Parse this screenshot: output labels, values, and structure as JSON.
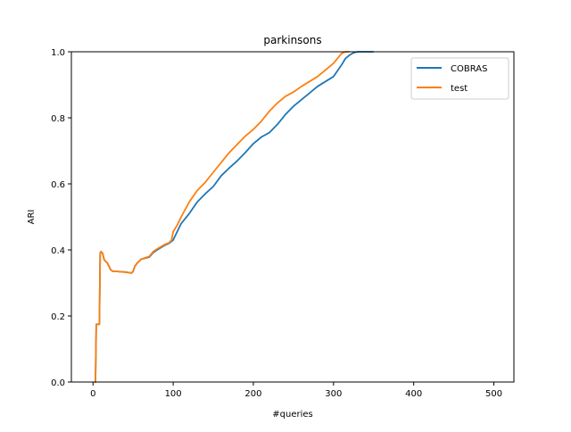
{
  "chart_data": {
    "type": "line",
    "title": "parkinsons",
    "xlabel": "#queries",
    "ylabel": "ARI",
    "xlim": [
      -27,
      525
    ],
    "ylim": [
      0.0,
      1.0
    ],
    "xticks": [
      0,
      100,
      200,
      300,
      400,
      500
    ],
    "yticks": [
      0.0,
      0.2,
      0.4,
      0.6,
      0.8,
      1.0
    ],
    "xtick_labels": [
      "0",
      "100",
      "200",
      "300",
      "400",
      "500"
    ],
    "ytick_labels": [
      "0.0",
      "0.2",
      "0.4",
      "0.6",
      "0.8",
      "1.0"
    ],
    "grid": false,
    "legend_position": "top-right",
    "series": [
      {
        "name": "COBRAS",
        "color": "#1f77b4",
        "x": [
          2,
          3,
          4,
          5,
          8,
          9,
          10,
          12,
          14,
          16,
          18,
          22,
          25,
          30,
          40,
          48,
          50,
          52,
          55,
          60,
          70,
          75,
          80,
          90,
          95,
          100,
          105,
          110,
          120,
          130,
          140,
          150,
          160,
          170,
          180,
          190,
          200,
          210,
          220,
          230,
          240,
          250,
          260,
          270,
          280,
          290,
          300,
          310,
          315,
          320,
          325,
          330,
          340,
          350
        ],
        "values": [
          0.0,
          0.0,
          0.175,
          0.175,
          0.175,
          0.39,
          0.395,
          0.39,
          0.37,
          0.365,
          0.36,
          0.34,
          0.335,
          0.335,
          0.333,
          0.33,
          0.335,
          0.35,
          0.36,
          0.372,
          0.378,
          0.392,
          0.4,
          0.415,
          0.42,
          0.43,
          0.455,
          0.48,
          0.51,
          0.545,
          0.57,
          0.592,
          0.625,
          0.648,
          0.67,
          0.695,
          0.722,
          0.742,
          0.755,
          0.78,
          0.81,
          0.835,
          0.855,
          0.875,
          0.895,
          0.91,
          0.925,
          0.96,
          0.98,
          0.99,
          0.997,
          1.0,
          1.0,
          1.0
        ]
      },
      {
        "name": "test",
        "color": "#ff7f0e",
        "x": [
          2,
          3,
          4,
          5,
          8,
          9,
          10,
          12,
          14,
          16,
          18,
          22,
          25,
          30,
          40,
          48,
          50,
          52,
          55,
          60,
          70,
          75,
          80,
          90,
          95,
          98,
          100,
          105,
          110,
          120,
          130,
          140,
          150,
          160,
          170,
          180,
          190,
          200,
          210,
          220,
          230,
          240,
          250,
          260,
          270,
          280,
          290,
          300,
          305,
          310,
          315,
          320
        ],
        "values": [
          0.0,
          0.0,
          0.175,
          0.175,
          0.175,
          0.39,
          0.395,
          0.39,
          0.37,
          0.365,
          0.36,
          0.34,
          0.335,
          0.335,
          0.333,
          0.33,
          0.335,
          0.35,
          0.36,
          0.372,
          0.38,
          0.395,
          0.403,
          0.417,
          0.422,
          0.43,
          0.455,
          0.475,
          0.5,
          0.545,
          0.58,
          0.605,
          0.635,
          0.665,
          0.695,
          0.72,
          0.745,
          0.765,
          0.79,
          0.82,
          0.845,
          0.865,
          0.878,
          0.895,
          0.91,
          0.925,
          0.945,
          0.965,
          0.98,
          0.995,
          1.0,
          1.0
        ]
      }
    ]
  }
}
